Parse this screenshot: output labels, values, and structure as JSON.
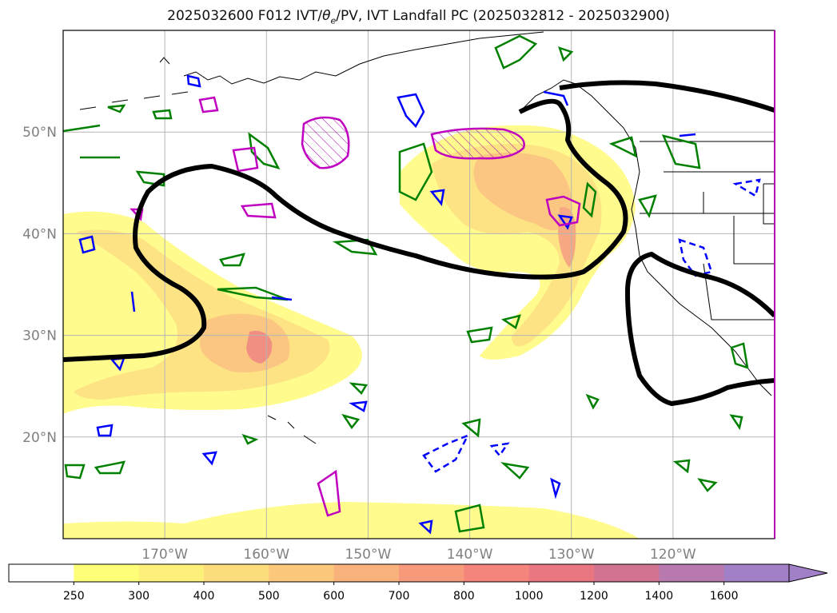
{
  "title": {
    "prefix": "2025032600 F012 IVT/",
    "theta": "θ",
    "sub": "e",
    "suffix": "/PV, IVT Landfall PC (2025032812 - 2025032900)"
  },
  "map": {
    "lat_labels": [
      "50°N",
      "40°N",
      "30°N",
      "20°N"
    ],
    "lon_labels": [
      "170°W",
      "160°W",
      "150°W",
      "140°W",
      "130°W",
      "120°W"
    ],
    "lat_range": [
      10,
      60
    ],
    "lon_range": [
      -180,
      -110
    ],
    "gridlines": true
  },
  "colorbar": {
    "ticks": [
      "250",
      "300",
      "400",
      "500",
      "600",
      "700",
      "800",
      "1000",
      "1200",
      "1400",
      "1600"
    ],
    "colors": [
      "#ffffff",
      "#fefe78",
      "#fdf07a",
      "#fcdc7c",
      "#fbc87c",
      "#f9b27c",
      "#f79a7c",
      "#f4847c",
      "#e97680",
      "#d27490",
      "#b87aae",
      "#a280c8"
    ],
    "extend": "max"
  }
}
